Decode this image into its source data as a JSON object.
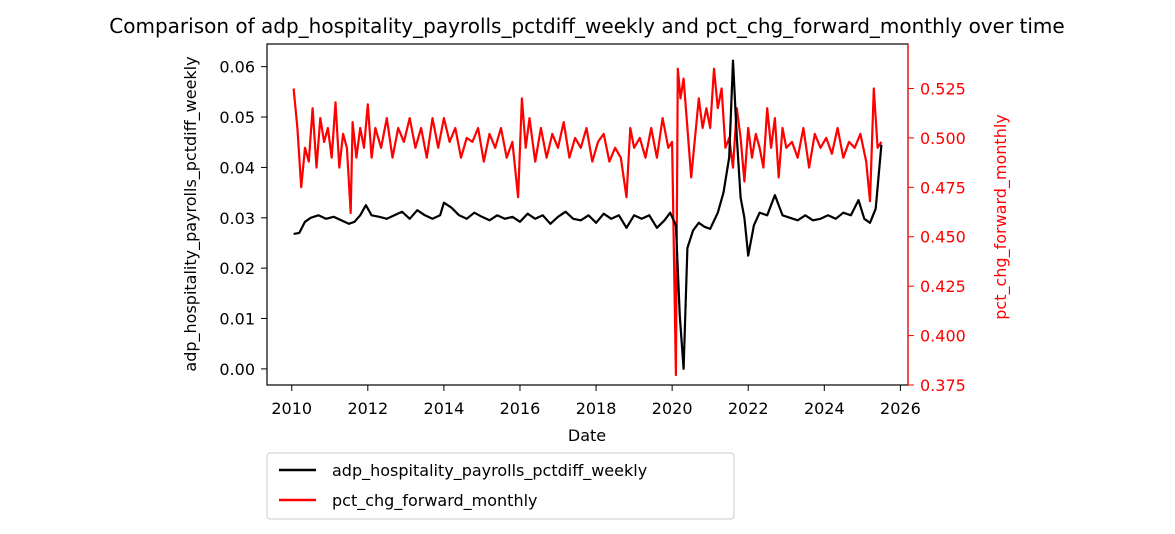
{
  "chart_data": {
    "type": "line",
    "title": "Comparison of adp_hospitality_payrolls_pctdiff_weekly and pct_chg_forward_monthly over time",
    "xlabel": "Date",
    "ylabel_left": "adp_hospitality_payrolls_pctdiff_weekly",
    "ylabel_right": "pct_chg_forward_monthly",
    "xlim": [
      2009.35,
      2026.2
    ],
    "ylim_left": [
      -0.0032,
      0.0645
    ],
    "ylim_right": [
      0.375,
      0.5475
    ],
    "x_ticks": [
      "2010",
      "2012",
      "2014",
      "2016",
      "2018",
      "2020",
      "2022",
      "2024",
      "2026"
    ],
    "y_ticks_left": [
      "0.00",
      "0.01",
      "0.02",
      "0.03",
      "0.04",
      "0.05",
      "0.06"
    ],
    "y_ticks_right": [
      "0.375",
      "0.400",
      "0.425",
      "0.450",
      "0.475",
      "0.500",
      "0.525"
    ],
    "grid": false,
    "legend_position": "below",
    "colors": {
      "left_series": "#000000",
      "right_series": "#ff0000"
    },
    "series": [
      {
        "name": "adp_hospitality_payrolls_pctdiff_weekly",
        "axis": "left",
        "color": "#000000",
        "x": [
          2010.05,
          2010.2,
          2010.35,
          2010.5,
          2010.7,
          2010.9,
          2011.1,
          2011.3,
          2011.5,
          2011.65,
          2011.8,
          2011.95,
          2012.1,
          2012.3,
          2012.5,
          2012.7,
          2012.9,
          2013.1,
          2013.3,
          2013.5,
          2013.7,
          2013.9,
          2014.0,
          2014.2,
          2014.4,
          2014.6,
          2014.8,
          2015.0,
          2015.2,
          2015.4,
          2015.6,
          2015.8,
          2016.0,
          2016.2,
          2016.4,
          2016.6,
          2016.8,
          2017.0,
          2017.2,
          2017.4,
          2017.6,
          2017.8,
          2018.0,
          2018.2,
          2018.4,
          2018.6,
          2018.8,
          2019.0,
          2019.2,
          2019.4,
          2019.6,
          2019.8,
          2019.95,
          2020.1,
          2020.2,
          2020.3,
          2020.4,
          2020.55,
          2020.7,
          2020.85,
          2021.0,
          2021.2,
          2021.35,
          2021.5,
          2021.6,
          2021.7,
          2021.8,
          2021.9,
          2022.0,
          2022.15,
          2022.3,
          2022.5,
          2022.7,
          2022.9,
          2023.1,
          2023.3,
          2023.5,
          2023.7,
          2023.9,
          2024.1,
          2024.3,
          2024.5,
          2024.7,
          2024.9,
          2025.05,
          2025.2,
          2025.35,
          2025.5
        ],
        "values": [
          0.0268,
          0.027,
          0.0292,
          0.03,
          0.0305,
          0.0298,
          0.0302,
          0.0295,
          0.0288,
          0.0292,
          0.0305,
          0.0325,
          0.0305,
          0.0302,
          0.0298,
          0.0305,
          0.0312,
          0.0298,
          0.0315,
          0.0305,
          0.0298,
          0.0305,
          0.033,
          0.032,
          0.0305,
          0.0298,
          0.031,
          0.0302,
          0.0295,
          0.0305,
          0.0298,
          0.0302,
          0.0292,
          0.0308,
          0.0298,
          0.0305,
          0.0288,
          0.0302,
          0.0312,
          0.0298,
          0.0295,
          0.0305,
          0.029,
          0.0308,
          0.0298,
          0.0305,
          0.028,
          0.0305,
          0.0298,
          0.0305,
          0.028,
          0.0295,
          0.031,
          0.0285,
          0.0105,
          0.0,
          0.024,
          0.0275,
          0.029,
          0.0282,
          0.0278,
          0.031,
          0.035,
          0.042,
          0.0612,
          0.046,
          0.034,
          0.03,
          0.0225,
          0.0285,
          0.031,
          0.0305,
          0.0345,
          0.0305,
          0.03,
          0.0295,
          0.0305,
          0.0295,
          0.0298,
          0.0305,
          0.0298,
          0.031,
          0.0305,
          0.0335,
          0.0298,
          0.029,
          0.0318,
          0.0445
        ]
      },
      {
        "name": "pct_chg_forward_monthly",
        "axis": "right",
        "color": "#ff0000",
        "x": [
          2010.05,
          2010.15,
          2010.25,
          2010.35,
          2010.45,
          2010.55,
          2010.65,
          2010.75,
          2010.85,
          2010.95,
          2011.05,
          2011.15,
          2011.25,
          2011.35,
          2011.45,
          2011.55,
          2011.6,
          2011.7,
          2011.8,
          2011.9,
          2012.0,
          2012.1,
          2012.2,
          2012.35,
          2012.5,
          2012.65,
          2012.8,
          2012.95,
          2013.1,
          2013.25,
          2013.4,
          2013.55,
          2013.7,
          2013.85,
          2014.0,
          2014.15,
          2014.3,
          2014.45,
          2014.6,
          2014.75,
          2014.9,
          2015.05,
          2015.2,
          2015.35,
          2015.5,
          2015.65,
          2015.8,
          2015.95,
          2016.05,
          2016.15,
          2016.25,
          2016.4,
          2016.55,
          2016.7,
          2016.85,
          2017.0,
          2017.15,
          2017.3,
          2017.45,
          2017.6,
          2017.75,
          2017.9,
          2018.05,
          2018.2,
          2018.35,
          2018.5,
          2018.65,
          2018.8,
          2018.9,
          2019.0,
          2019.15,
          2019.3,
          2019.45,
          2019.6,
          2019.75,
          2019.9,
          2020.0,
          2020.1,
          2020.15,
          2020.22,
          2020.3,
          2020.4,
          2020.5,
          2020.6,
          2020.7,
          2020.8,
          2020.9,
          2021.0,
          2021.1,
          2021.2,
          2021.3,
          2021.4,
          2021.5,
          2021.6,
          2021.7,
          2021.8,
          2021.9,
          2022.0,
          2022.1,
          2022.2,
          2022.3,
          2022.4,
          2022.5,
          2022.6,
          2022.7,
          2022.8,
          2022.9,
          2023.0,
          2023.15,
          2023.3,
          2023.45,
          2023.6,
          2023.75,
          2023.9,
          2024.05,
          2024.2,
          2024.35,
          2024.5,
          2024.65,
          2024.8,
          2024.95,
          2025.1,
          2025.2,
          2025.3,
          2025.4,
          2025.5
        ],
        "values": [
          0.525,
          0.505,
          0.475,
          0.495,
          0.488,
          0.515,
          0.485,
          0.51,
          0.498,
          0.505,
          0.49,
          0.518,
          0.485,
          0.502,
          0.495,
          0.462,
          0.508,
          0.49,
          0.505,
          0.495,
          0.517,
          0.49,
          0.505,
          0.495,
          0.51,
          0.49,
          0.505,
          0.498,
          0.51,
          0.495,
          0.505,
          0.49,
          0.51,
          0.495,
          0.51,
          0.498,
          0.505,
          0.49,
          0.5,
          0.498,
          0.505,
          0.488,
          0.502,
          0.495,
          0.505,
          0.49,
          0.498,
          0.47,
          0.52,
          0.495,
          0.51,
          0.488,
          0.505,
          0.49,
          0.502,
          0.495,
          0.508,
          0.49,
          0.5,
          0.495,
          0.505,
          0.488,
          0.498,
          0.502,
          0.488,
          0.495,
          0.49,
          0.47,
          0.505,
          0.495,
          0.5,
          0.49,
          0.505,
          0.49,
          0.51,
          0.495,
          0.498,
          0.38,
          0.535,
          0.52,
          0.53,
          0.505,
          0.48,
          0.5,
          0.52,
          0.505,
          0.515,
          0.505,
          0.535,
          0.515,
          0.525,
          0.495,
          0.5,
          0.485,
          0.515,
          0.5,
          0.478,
          0.505,
          0.49,
          0.502,
          0.495,
          0.485,
          0.515,
          0.495,
          0.51,
          0.48,
          0.505,
          0.495,
          0.498,
          0.49,
          0.505,
          0.485,
          0.502,
          0.495,
          0.5,
          0.492,
          0.505,
          0.49,
          0.498,
          0.495,
          0.502,
          0.488,
          0.468,
          0.525,
          0.495,
          0.498
        ]
      }
    ]
  }
}
